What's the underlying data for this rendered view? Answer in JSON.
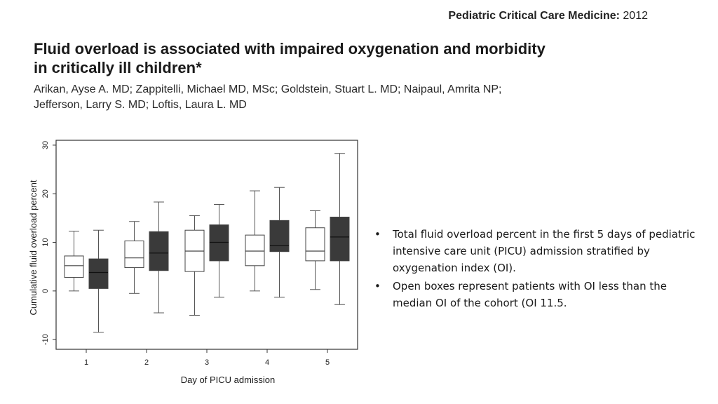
{
  "header": {
    "journal_label": "Pediatric Critical Care Medicine:",
    "year": "2012"
  },
  "article": {
    "title_line1": "Fluid overload is associated with impaired oxygenation and morbidity",
    "title_line2": "in critically ill children*",
    "authors_line1": "Arikan, Ayse A. MD; Zappitelli, Michael MD, MSc; Goldstein, Stuart L. MD; Naipaul, Amrita NP;",
    "authors_line2": "Jefferson, Larry S. MD; Loftis, Laura L. MD"
  },
  "bullets": {
    "marker": "•",
    "items": [
      "Total fluid overload percent in the first 5 days of pediatric intensive care unit (PICU) admission stratified by oxygenation index (OI).",
      "Open boxes represent patients with OI less than the median OI of the cohort (OI 11.5."
    ]
  },
  "colors": {
    "open_box": "#ffffff",
    "filled_box": "#3a3a3a",
    "axis": "#333333"
  },
  "chart_data": {
    "type": "boxplot",
    "title": "",
    "xlabel": "Day of PICU admission",
    "ylabel": "Cumulative fluid overload percent",
    "ylim": [
      -12,
      31
    ],
    "yticks": [
      -10,
      0,
      10,
      20,
      30
    ],
    "categories": [
      "1",
      "2",
      "3",
      "4",
      "5"
    ],
    "series": [
      {
        "name": "OI < median (open)",
        "boxes": [
          {
            "min": 0,
            "q1": 2.8,
            "median": 5.2,
            "q3": 7.2,
            "max": 12.3
          },
          {
            "min": -0.5,
            "q1": 4.8,
            "median": 6.8,
            "q3": 10.3,
            "max": 14.3
          },
          {
            "min": -5.0,
            "q1": 4.0,
            "median": 8.2,
            "q3": 12.5,
            "max": 15.5
          },
          {
            "min": 0,
            "q1": 5.2,
            "median": 8.2,
            "q3": 11.5,
            "max": 20.6
          },
          {
            "min": 0.3,
            "q1": 6.2,
            "median": 8.2,
            "q3": 13.0,
            "max": 16.5
          }
        ]
      },
      {
        "name": "OI ≥ median (filled)",
        "boxes": [
          {
            "min": -8.5,
            "q1": 0.5,
            "median": 3.8,
            "q3": 6.6,
            "max": 12.5
          },
          {
            "min": -4.5,
            "q1": 4.2,
            "median": 7.8,
            "q3": 12.2,
            "max": 18.3
          },
          {
            "min": -1.3,
            "q1": 6.2,
            "median": 10.0,
            "q3": 13.6,
            "max": 17.8
          },
          {
            "min": -1.3,
            "q1": 8.1,
            "median": 9.3,
            "q3": 14.5,
            "max": 21.3
          },
          {
            "min": -2.8,
            "q1": 6.2,
            "median": 11.1,
            "q3": 15.2,
            "max": 28.3
          }
        ]
      }
    ]
  }
}
